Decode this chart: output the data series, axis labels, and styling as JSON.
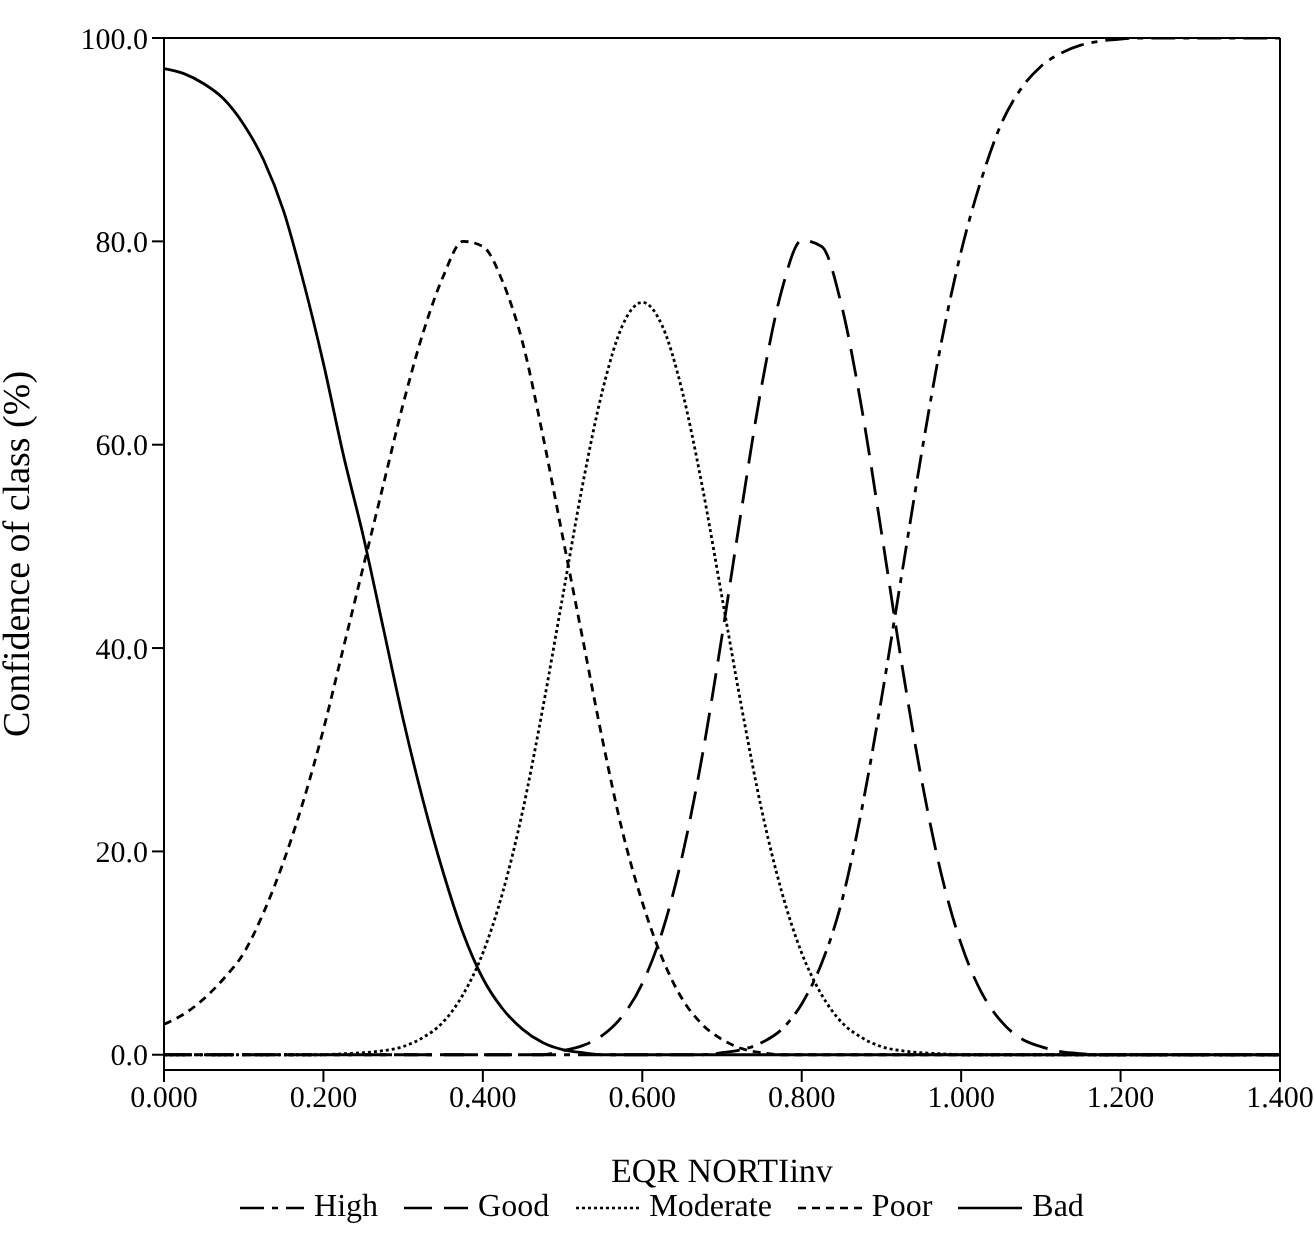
{
  "chart_data": {
    "type": "line",
    "xlabel": "EQR NORTIinv",
    "ylabel": "Confidence of class (%)",
    "x": [
      0,
      0.025,
      0.05,
      0.075,
      0.1,
      0.125,
      0.15,
      0.175,
      0.2,
      0.225,
      0.25,
      0.275,
      0.3,
      0.325,
      0.35,
      0.375,
      0.4,
      0.425,
      0.45,
      0.475,
      0.5,
      0.525,
      0.55,
      0.575,
      0.6,
      0.625,
      0.65,
      0.675,
      0.7,
      0.725,
      0.75,
      0.775,
      0.8,
      0.825,
      0.85,
      0.875,
      0.9,
      0.925,
      0.95,
      0.975,
      1.0,
      1.025,
      1.05,
      1.075,
      1.1,
      1.125,
      1.15,
      1.175,
      1.2,
      1.225,
      1.25,
      1.275,
      1.3,
      1.325,
      1.35,
      1.375,
      1.4
    ],
    "series": [
      {
        "name": "High",
        "color": "#000000",
        "line_style": "dashed",
        "values": [
          0,
          0,
          0,
          0,
          0,
          0,
          0,
          0,
          0,
          0,
          0,
          0,
          0,
          0,
          0,
          0,
          0,
          0,
          0,
          0,
          0,
          0,
          0,
          0,
          0,
          0,
          0,
          0,
          0.2,
          0.5,
          1.2,
          2.5,
          5,
          9,
          15,
          24,
          35,
          47,
          59,
          70,
          79,
          86,
          91.5,
          95,
          97.2,
          98.5,
          99.3,
          99.7,
          99.9,
          100,
          100,
          100,
          100,
          100,
          100,
          100,
          100
        ]
      },
      {
        "name": "Good",
        "color": "#000000",
        "line_style": "dashed",
        "values": [
          0,
          0,
          0,
          0,
          0,
          0,
          0,
          0,
          0,
          0,
          0,
          0,
          0,
          0,
          0,
          0,
          0,
          0,
          0,
          0,
          0.4,
          0.9,
          1.9,
          3.8,
          7.0,
          12.1,
          19.5,
          29.3,
          41.2,
          53.9,
          65.9,
          75.2,
          80.1,
          79.5,
          73.7,
          63.7,
          51.4,
          38.7,
          27.2,
          17.8,
          10.9,
          6.2,
          3.3,
          1.6,
          0.8,
          0.3,
          0.1,
          0,
          0,
          0,
          0,
          0,
          0,
          0,
          0,
          0,
          0
        ]
      },
      {
        "name": "Moderate",
        "color": "#000000",
        "line_style": "dotted",
        "values": [
          0,
          0,
          0,
          0,
          0,
          0,
          0,
          0,
          0,
          0.1,
          0.2,
          0.4,
          0.8,
          1.7,
          3.2,
          5.9,
          10,
          16,
          24,
          34,
          45,
          56,
          65.3,
          71.7,
          74,
          71.7,
          65.3,
          56,
          45,
          34,
          24,
          16,
          10,
          5.9,
          3.2,
          1.7,
          0.8,
          0.4,
          0.2,
          0.1,
          0,
          0,
          0,
          0,
          0,
          0,
          0,
          0,
          0,
          0,
          0,
          0,
          0,
          0,
          0,
          0,
          0
        ]
      },
      {
        "name": "Poor",
        "color": "#000000",
        "line_style": "dashed",
        "values": [
          3,
          4,
          5.5,
          7.5,
          10,
          14,
          19,
          25,
          32,
          40,
          48,
          56,
          64,
          71,
          76.5,
          80,
          79.5,
          76,
          70,
          61,
          51,
          41,
          31,
          22,
          15,
          9.5,
          5.5,
          3,
          1.5,
          0.6,
          0.2,
          0,
          0,
          0,
          0,
          0,
          0,
          0,
          0,
          0,
          0,
          0,
          0,
          0,
          0,
          0,
          0,
          0,
          0,
          0,
          0,
          0,
          0,
          0,
          0,
          0,
          0
        ]
      },
      {
        "name": "Bad",
        "color": "#000000",
        "line_style": "solid",
        "values": [
          97,
          96.5,
          95.5,
          94,
          91.5,
          88,
          83,
          76,
          68,
          59,
          51,
          42,
          33,
          25,
          18,
          12,
          7.5,
          4.5,
          2.5,
          1.2,
          0.5,
          0.2,
          0,
          0,
          0,
          0,
          0,
          0,
          0,
          0,
          0,
          0,
          0,
          0,
          0,
          0,
          0,
          0,
          0,
          0,
          0,
          0,
          0,
          0,
          0,
          0,
          0,
          0,
          0,
          0,
          0,
          0,
          0,
          0,
          0,
          0,
          0
        ]
      }
    ],
    "xlim": [
      0,
      1.4
    ],
    "xticks": [
      {
        "value": 0,
        "label": "0.000"
      },
      {
        "value": 0.2,
        "label": "0.200"
      },
      {
        "value": 0.4,
        "label": "0.400"
      },
      {
        "value": 0.6,
        "label": "0.600"
      },
      {
        "value": 0.8,
        "label": "0.800"
      },
      {
        "value": 1.0,
        "label": "1.000"
      },
      {
        "value": 1.2,
        "label": "1.200"
      },
      {
        "value": 1.4,
        "label": "1.400"
      }
    ],
    "ylim": [
      -1.5,
      100
    ],
    "yticks": [
      {
        "value": 0,
        "label": "0.0"
      },
      {
        "value": 20,
        "label": "20.0"
      },
      {
        "value": 40,
        "label": "40.0"
      },
      {
        "value": 60,
        "label": "60.0"
      },
      {
        "value": 80,
        "label": "80.0"
      },
      {
        "value": 100,
        "label": "100.0"
      }
    ],
    "grid": false,
    "legend": "bottom",
    "marker": "none"
  }
}
